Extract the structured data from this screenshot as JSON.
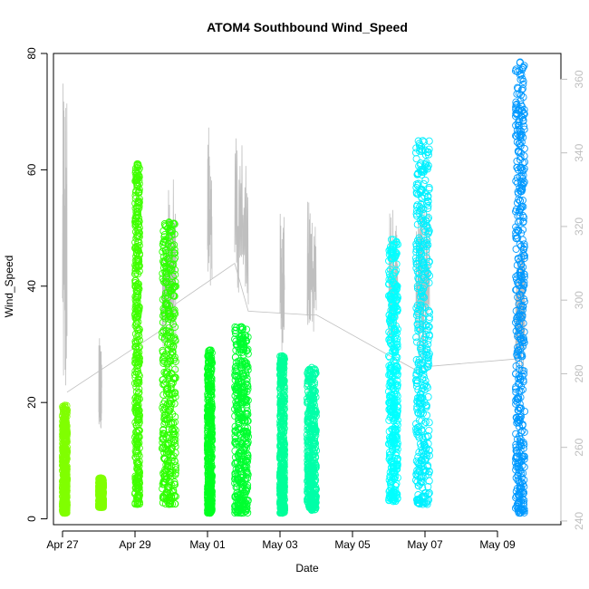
{
  "chart_data": {
    "type": "scatter",
    "title": "ATOM4 Southbound Wind_Speed",
    "xlabel": "Date",
    "ylabel": "Wind_Speed",
    "x_ticks": [
      "Apr 27",
      "Apr 29",
      "May 01",
      "May 03",
      "May 05",
      "May 07",
      "May 09"
    ],
    "y_ticks": [
      "0",
      "20",
      "40",
      "60",
      "80"
    ],
    "y2_ticks": [
      "240",
      "260",
      "280",
      "300",
      "320",
      "340",
      "360"
    ],
    "xlim": [
      "2023-04-26 18:00",
      "2023-05-10 18:00"
    ],
    "ylim": [
      -1,
      80
    ],
    "y2lim": [
      239,
      367
    ],
    "grid": false,
    "legend": "none",
    "series": [
      {
        "x_start": "2023-04-27 00:00",
        "x_end": "2023-04-27 03:00",
        "y_min": 1,
        "y_max": 19.5,
        "color": "#80ff00"
      },
      {
        "x_start": "2023-04-28 00:00",
        "x_end": "2023-04-28 03:00",
        "y_min": 2,
        "y_max": 7,
        "color": "#80ff00"
      },
      {
        "x_start": "2023-04-29 00:00",
        "x_end": "2023-04-29 03:00",
        "y_min": 2.5,
        "y_max": 61,
        "color": "#40ff00"
      },
      {
        "x_start": "2023-04-29 18:00",
        "x_end": "2023-04-30 03:00",
        "y_min": 2.5,
        "y_max": 51,
        "color": "#2eff00"
      },
      {
        "x_start": "2023-05-01 00:00",
        "x_end": "2023-05-01 03:00",
        "y_min": 1,
        "y_max": 29,
        "color": "#00ff20"
      },
      {
        "x_start": "2023-05-01 18:00",
        "x_end": "2023-05-02 03:00",
        "y_min": 1,
        "y_max": 33,
        "color": "#00ff30"
      },
      {
        "x_start": "2023-05-03 00:00",
        "x_end": "2023-05-03 03:00",
        "y_min": 1,
        "y_max": 28,
        "color": "#00ff99"
      },
      {
        "x_start": "2023-05-03 18:00",
        "x_end": "2023-05-04 00:00",
        "y_min": 1.5,
        "y_max": 26,
        "color": "#00ffa8"
      },
      {
        "x_start": "2023-05-06 00:00",
        "x_end": "2023-05-06 06:00",
        "y_min": 3,
        "y_max": 48,
        "color": "#00ffff"
      },
      {
        "x_start": "2023-05-06 18:00",
        "x_end": "2023-05-07 03:00",
        "y_min": 2.5,
        "y_max": 65,
        "color": "#00f0ff"
      },
      {
        "x_start": "2023-05-09 12:00",
        "x_end": "2023-05-09 18:00",
        "y_min": 1,
        "y_max": 78.5,
        "color": "#0099ff"
      }
    ],
    "direction_line": {
      "color": "#bfbfbf",
      "axis": "right",
      "segments": [
        {
          "x_start": "2023-04-27 00:00",
          "x_end": "2023-04-27 03:00",
          "y_min": 272,
          "y_max": 359
        },
        {
          "x_start": "2023-04-28 00:00",
          "x_end": "2023-04-28 02:00",
          "y_min": 264,
          "y_max": 290
        },
        {
          "x_start": "2023-04-29 18:00",
          "x_end": "2023-04-30 03:00",
          "y_min": 280,
          "y_max": 334
        },
        {
          "x_start": "2023-05-01 00:00",
          "x_end": "2023-05-01 03:00",
          "y_min": 298,
          "y_max": 347
        },
        {
          "x_start": "2023-05-01 18:00",
          "x_end": "2023-05-02 03:00",
          "y_min": 296,
          "y_max": 344
        },
        {
          "x_start": "2023-05-03 00:00",
          "x_end": "2023-05-03 03:00",
          "y_min": 286,
          "y_max": 324
        },
        {
          "x_start": "2023-05-03 18:00",
          "x_end": "2023-05-04 00:00",
          "y_min": 289,
          "y_max": 327
        },
        {
          "x_start": "2023-05-06 00:00",
          "x_end": "2023-05-06 06:00",
          "y_min": 281,
          "y_max": 325
        },
        {
          "x_start": "2023-05-06 18:00",
          "x_end": "2023-05-07 03:00",
          "y_min": 278,
          "y_max": 328
        },
        {
          "x_start": "2023-05-09 12:00",
          "x_end": "2023-05-09 18:00",
          "y_min": 278,
          "y_max": 320
        }
      ],
      "connectors": [
        {
          "x": "2023-04-27 03:00",
          "y": 275
        },
        {
          "x": "2023-04-29 18:00",
          "y": 292
        },
        {
          "x": "2023-04-30 03:00",
          "y": 299
        },
        {
          "x": "2023-05-01 18:00",
          "y": 310
        },
        {
          "x": "2023-05-02 03:00",
          "y": 297
        },
        {
          "x": "2023-05-03 18:00",
          "y": 296
        },
        {
          "x": "2023-05-04 00:00",
          "y": 296
        },
        {
          "x": "2023-05-06 00:00",
          "y": 285
        },
        {
          "x": "2023-05-06 18:00",
          "y": 281
        },
        {
          "x": "2023-05-07 03:00",
          "y": 282
        },
        {
          "x": "2023-05-09 12:00",
          "y": 284
        }
      ]
    }
  }
}
